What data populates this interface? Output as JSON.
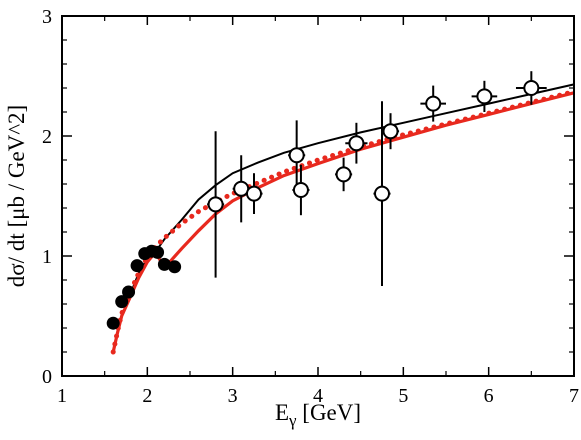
{
  "chart_data": {
    "type": "scatter",
    "xlabel": "E",
    "xlabel_sub": "γ",
    "xlabel_unit": " [GeV]",
    "ylabel": "dσ/ dt [μb / GeV^2]",
    "xlim": [
      1,
      7
    ],
    "ylim": [
      0,
      3
    ],
    "x_ticks": [
      1,
      2,
      3,
      4,
      5,
      6,
      7
    ],
    "y_ticks": [
      0,
      1,
      2,
      3
    ],
    "grid": false,
    "series": [
      {
        "kind": "points-filled",
        "color": "#000000",
        "points": [
          {
            "x": 1.6,
            "y": 0.44
          },
          {
            "x": 1.7,
            "y": 0.62
          },
          {
            "x": 1.78,
            "y": 0.7
          },
          {
            "x": 1.88,
            "y": 0.92
          },
          {
            "x": 1.97,
            "y": 1.02
          },
          {
            "x": 2.05,
            "y": 1.04
          },
          {
            "x": 2.12,
            "y": 1.03
          },
          {
            "x": 2.2,
            "y": 0.93
          },
          {
            "x": 2.32,
            "y": 0.91
          }
        ]
      },
      {
        "kind": "points-open",
        "color": "#000000",
        "points": [
          {
            "x": 2.8,
            "y": 1.43,
            "yerr": 0.61,
            "xerr": 0.1
          },
          {
            "x": 3.1,
            "y": 1.56,
            "yerr": 0.28,
            "xerr": 0.1
          },
          {
            "x": 3.25,
            "y": 1.52,
            "yerr": 0.17,
            "xerr": 0.1
          },
          {
            "x": 3.75,
            "y": 1.84,
            "yerr": 0.29,
            "xerr": 0.1
          },
          {
            "x": 3.8,
            "y": 1.55,
            "yerr": 0.21,
            "xerr": 0.1
          },
          {
            "x": 4.3,
            "y": 1.68,
            "yerr": 0.14,
            "xerr": 0.1
          },
          {
            "x": 4.45,
            "y": 1.94,
            "yerr": 0.17,
            "xerr": 0.13
          },
          {
            "x": 4.75,
            "y": 1.52,
            "yerr": 0.77,
            "xerr": 0.1
          },
          {
            "x": 4.85,
            "y": 2.04,
            "yerr": 0.15,
            "xerr": 0.1
          },
          {
            "x": 5.35,
            "y": 2.27,
            "yerr": 0.15,
            "xerr": 0.15
          },
          {
            "x": 5.95,
            "y": 2.33,
            "yerr": 0.13,
            "xerr": 0.15
          },
          {
            "x": 6.5,
            "y": 2.4,
            "yerr": 0.14,
            "xerr": 0.18
          }
        ]
      },
      {
        "kind": "line-solid",
        "color": "#000000",
        "points": [
          {
            "x": 1.6,
            "y": 0.2
          },
          {
            "x": 1.65,
            "y": 0.36
          },
          {
            "x": 1.7,
            "y": 0.5
          },
          {
            "x": 1.8,
            "y": 0.68
          },
          {
            "x": 1.9,
            "y": 0.86
          },
          {
            "x": 2.0,
            "y": 0.98
          },
          {
            "x": 2.1,
            "y": 1.04
          },
          {
            "x": 2.2,
            "y": 1.14
          },
          {
            "x": 2.4,
            "y": 1.3
          },
          {
            "x": 2.6,
            "y": 1.47
          },
          {
            "x": 2.8,
            "y": 1.59
          },
          {
            "x": 3.0,
            "y": 1.69
          },
          {
            "x": 3.3,
            "y": 1.78
          },
          {
            "x": 3.6,
            "y": 1.86
          },
          {
            "x": 4.0,
            "y": 1.94
          },
          {
            "x": 4.5,
            "y": 2.03
          },
          {
            "x": 5.0,
            "y": 2.11
          },
          {
            "x": 5.5,
            "y": 2.19
          },
          {
            "x": 6.0,
            "y": 2.27
          },
          {
            "x": 6.5,
            "y": 2.35
          },
          {
            "x": 7.0,
            "y": 2.43
          }
        ]
      },
      {
        "kind": "line-red-solid",
        "color": "#e8291e",
        "points": [
          {
            "x": 1.6,
            "y": 0.2
          },
          {
            "x": 1.65,
            "y": 0.36
          },
          {
            "x": 1.7,
            "y": 0.5
          },
          {
            "x": 1.8,
            "y": 0.66
          },
          {
            "x": 1.9,
            "y": 0.82
          },
          {
            "x": 2.0,
            "y": 0.95
          },
          {
            "x": 2.07,
            "y": 1.01
          },
          {
            "x": 2.12,
            "y": 1.0
          },
          {
            "x": 2.18,
            "y": 0.93
          },
          {
            "x": 2.24,
            "y": 0.93
          },
          {
            "x": 2.3,
            "y": 0.98
          },
          {
            "x": 2.4,
            "y": 1.06
          },
          {
            "x": 2.6,
            "y": 1.21
          },
          {
            "x": 2.8,
            "y": 1.35
          },
          {
            "x": 3.0,
            "y": 1.46
          },
          {
            "x": 3.3,
            "y": 1.57
          },
          {
            "x": 3.6,
            "y": 1.67
          },
          {
            "x": 4.0,
            "y": 1.77
          },
          {
            "x": 4.5,
            "y": 1.89
          },
          {
            "x": 5.0,
            "y": 1.99
          },
          {
            "x": 5.5,
            "y": 2.09
          },
          {
            "x": 6.0,
            "y": 2.18
          },
          {
            "x": 6.5,
            "y": 2.27
          },
          {
            "x": 7.0,
            "y": 2.36
          }
        ]
      },
      {
        "kind": "line-red-dotted",
        "color": "#e8291e",
        "points": [
          {
            "x": 1.6,
            "y": 0.2
          },
          {
            "x": 1.65,
            "y": 0.37
          },
          {
            "x": 1.7,
            "y": 0.52
          },
          {
            "x": 1.8,
            "y": 0.7
          },
          {
            "x": 1.9,
            "y": 0.86
          },
          {
            "x": 2.0,
            "y": 0.99
          },
          {
            "x": 2.1,
            "y": 1.08
          },
          {
            "x": 2.2,
            "y": 1.15
          },
          {
            "x": 2.4,
            "y": 1.27
          },
          {
            "x": 2.6,
            "y": 1.37
          },
          {
            "x": 2.8,
            "y": 1.45
          },
          {
            "x": 3.0,
            "y": 1.52
          },
          {
            "x": 3.3,
            "y": 1.61
          },
          {
            "x": 3.6,
            "y": 1.7
          },
          {
            "x": 4.0,
            "y": 1.8
          },
          {
            "x": 4.5,
            "y": 1.91
          },
          {
            "x": 5.0,
            "y": 2.01
          },
          {
            "x": 5.5,
            "y": 2.1
          },
          {
            "x": 6.0,
            "y": 2.19
          },
          {
            "x": 6.5,
            "y": 2.28
          },
          {
            "x": 7.0,
            "y": 2.37
          }
        ]
      }
    ]
  }
}
